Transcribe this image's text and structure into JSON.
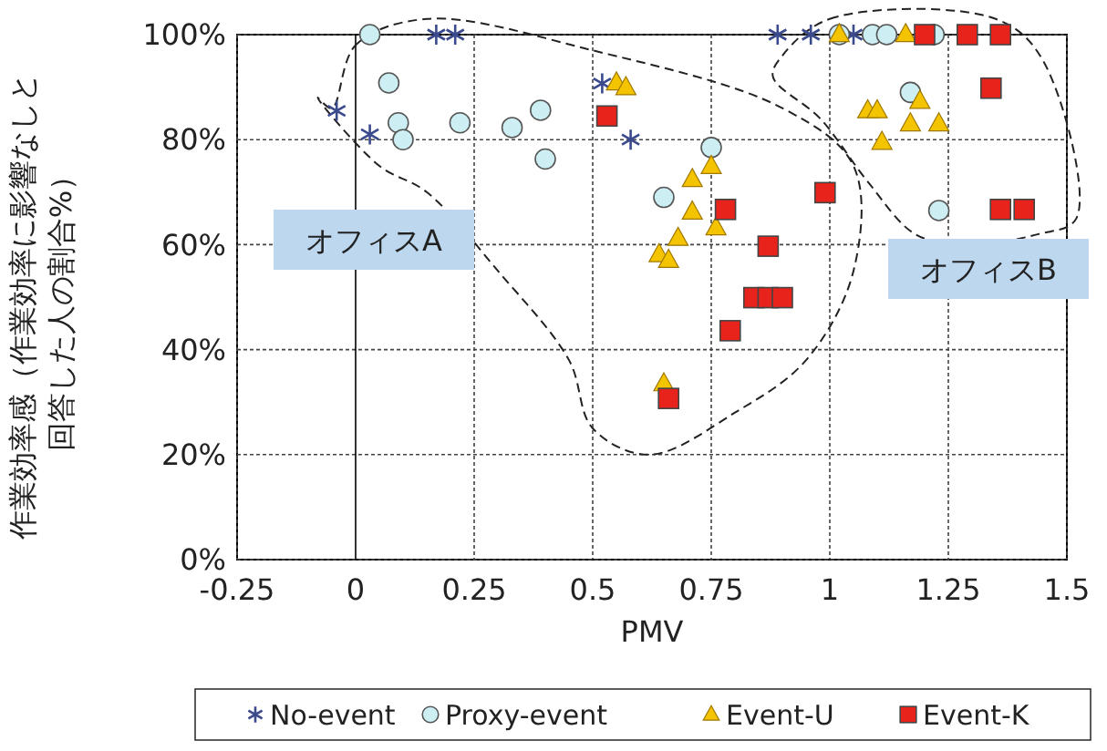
{
  "chart_data": {
    "type": "scatter",
    "xlabel": "PMV",
    "ylabel": "作業効率感（作業効率に影響なしと回答した人の割合%）",
    "xlim": [
      -0.25,
      1.5
    ],
    "xticks": [
      -0.25,
      0,
      0.25,
      0.5,
      0.75,
      1,
      1.25,
      1.5
    ],
    "ylim": [
      0,
      100
    ],
    "yticks": [
      {
        "value": 0,
        "label": "0%"
      },
      {
        "value": 20,
        "label": "20%"
      },
      {
        "value": 40,
        "label": "40%"
      },
      {
        "value": 60,
        "label": "60%"
      },
      {
        "value": 80,
        "label": "80%"
      },
      {
        "value": 100,
        "label": "100%"
      }
    ],
    "grid": true,
    "legend": "bottom",
    "annotations": [
      "オフィスA",
      "オフィスB"
    ],
    "series": [
      {
        "name": "No-event",
        "color": "#3a4a8c",
        "marker": "cross",
        "x": [
          -0.04,
          0.03,
          0.17,
          0.21,
          0.52,
          0.58,
          0.89,
          0.96,
          1.05
        ],
        "values": [
          85.5,
          81,
          100,
          100,
          90.7,
          80,
          100,
          100,
          100
        ]
      },
      {
        "name": "Proxy-event",
        "color": "#cdeef2",
        "marker": "circle",
        "x": [
          0.03,
          0.07,
          0.09,
          0.1,
          0.22,
          0.33,
          0.39,
          0.4,
          0.65,
          0.75,
          1.02,
          1.09,
          1.12,
          1.17,
          1.22,
          1.23
        ],
        "values": [
          100,
          90.8,
          83.2,
          80,
          83.2,
          82.3,
          85.6,
          76.3,
          69,
          78.5,
          100,
          100,
          100,
          89,
          100,
          66.5
        ]
      },
      {
        "name": "Event-U",
        "color": "#f5c400",
        "marker": "triangle",
        "x": [
          0.55,
          0.57,
          0.75,
          0.71,
          0.71,
          0.76,
          0.68,
          0.64,
          0.66,
          0.65,
          1.02,
          1.16,
          1.08,
          1.1,
          1.19,
          1.17,
          1.23,
          1.11
        ],
        "values": [
          90.8,
          89.9,
          74.9,
          72.4,
          66.2,
          63.2,
          61.2,
          58.1,
          57,
          33.5,
          100,
          100,
          85.5,
          85.5,
          87.3,
          83,
          83,
          79.5
        ]
      },
      {
        "name": "Event-K",
        "color": "#e8231b",
        "marker": "square",
        "x": [
          0.53,
          0.78,
          0.99,
          1.2,
          1.29,
          1.36,
          1.34,
          1.36,
          1.41,
          0.87,
          0.84,
          0.87,
          0.9,
          0.79,
          0.66
        ],
        "values": [
          84.5,
          66.7,
          69.9,
          100,
          100,
          100,
          89.8,
          66.7,
          66.7,
          59.7,
          49.9,
          49.9,
          49.9,
          43.6,
          30.7
        ]
      }
    ]
  }
}
